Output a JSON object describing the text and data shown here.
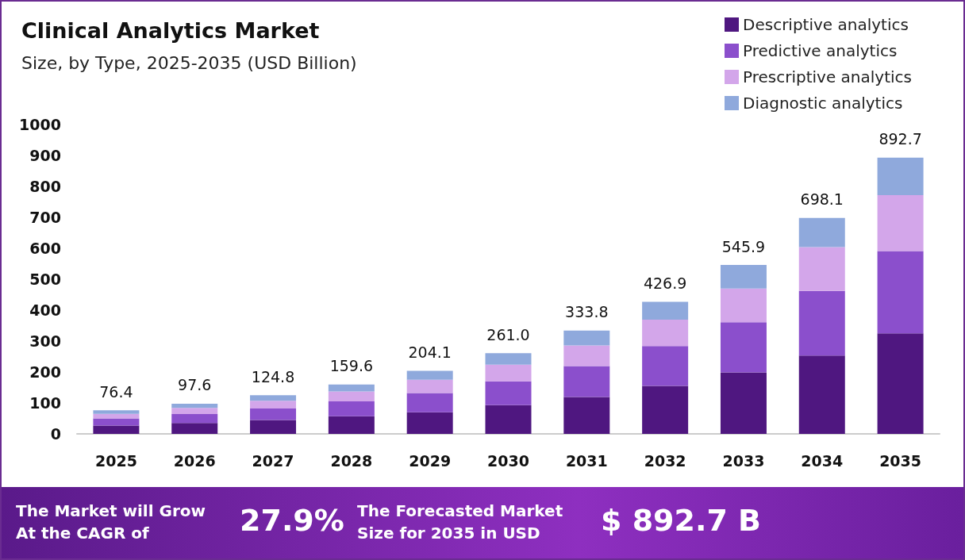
{
  "chart_data": {
    "type": "bar",
    "title": "Clinical Analytics Market",
    "subtitle": "Size, by Type, 2025-2035 (USD Billion)",
    "categories": [
      "2025",
      "2026",
      "2027",
      "2028",
      "2029",
      "2030",
      "2031",
      "2032",
      "2033",
      "2034",
      "2035"
    ],
    "stacked": true,
    "series": [
      {
        "name": "Descriptive analytics",
        "color": "#4f1780",
        "values": [
          27,
          35,
          45,
          57,
          70,
          93,
          119,
          155,
          199,
          253,
          325
        ]
      },
      {
        "name": "Predictive analytics",
        "color": "#8b4fcc",
        "values": [
          23,
          29,
          37,
          48,
          62,
          77,
          100,
          129,
          162,
          209,
          266
        ]
      },
      {
        "name": "Prescriptive analytics",
        "color": "#d3a6ea",
        "values": [
          15,
          20,
          25,
          32,
          43,
          54,
          67,
          85,
          109,
          142,
          181
        ]
      },
      {
        "name": "Diagnostic analytics",
        "color": "#8fa9dc",
        "values": [
          11.4,
          13.6,
          17.8,
          22.6,
          29.1,
          37,
          47.8,
          57.9,
          75.9,
          94.1,
          120.7
        ]
      }
    ],
    "totals": [
      "76.4",
      "97.6",
      "124.8",
      "159.6",
      "204.1",
      "261.0",
      "333.8",
      "426.9",
      "545.9",
      "698.1",
      "892.7"
    ],
    "ylim": [
      0,
      1000
    ],
    "yticks": [
      0,
      100,
      200,
      300,
      400,
      500,
      600,
      700,
      800,
      900,
      1000
    ],
    "grid": false,
    "legend": "top right",
    "annotations": [
      "The Market will Grow At the CAGR of",
      "27.9%",
      "The Forecasted Market Size for 2035 in USD",
      "$ 892.7 B"
    ]
  }
}
